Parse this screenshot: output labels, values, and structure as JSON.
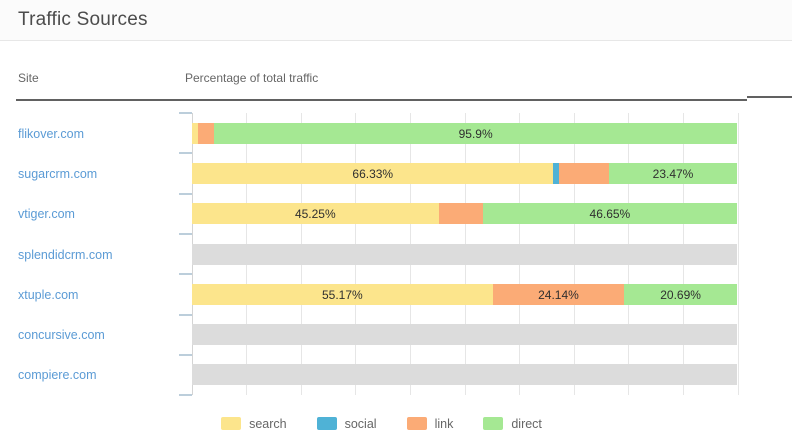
{
  "panel": {
    "title": "Traffic Sources"
  },
  "table": {
    "columns": {
      "site": "Site",
      "traffic": "Percentage of total traffic"
    }
  },
  "colors": {
    "search": "#FCE58C",
    "social": "#4FB2D6",
    "link": "#FBAB76",
    "direct": "#A5E893",
    "no_data": "#DCDCDC",
    "site_link_text": "#5B9BD5",
    "grid": "#E6E6E6",
    "axis": "#D4D4D4",
    "tick": "#BCCEDB",
    "header_border": "#616161",
    "segment_label_text": "#2F2F2F",
    "legend_text": "#666666"
  },
  "chart_data": {
    "type": "bar",
    "orientation": "horizontal",
    "stacked": true,
    "xlim": [
      0,
      100
    ],
    "grid": true,
    "gridline_step_pct": 10,
    "legend_position": "bottom",
    "categories": [
      "flikover.com",
      "sugarcrm.com",
      "vtiger.com",
      "splendidcrm.com",
      "xtuple.com",
      "concursive.com",
      "compiere.com"
    ],
    "series": [
      {
        "name": "search",
        "values": [
          1.1,
          66.33,
          45.25,
          null,
          55.17,
          null,
          null
        ],
        "labels": [
          "",
          "66.33%",
          "45.25%",
          "",
          "55.17%",
          "",
          ""
        ]
      },
      {
        "name": "social",
        "values": [
          0,
          1.05,
          0,
          null,
          0,
          null,
          null
        ],
        "labels": [
          "",
          "",
          "",
          "",
          "",
          "",
          ""
        ]
      },
      {
        "name": "link",
        "values": [
          3.0,
          9.15,
          8.1,
          null,
          24.14,
          null,
          null
        ],
        "labels": [
          "",
          "",
          "",
          "",
          "24.14%",
          "",
          ""
        ]
      },
      {
        "name": "direct",
        "values": [
          95.9,
          23.47,
          46.65,
          null,
          20.69,
          null,
          null
        ],
        "labels": [
          "95.9%",
          "23.47%",
          "46.65%",
          "",
          "20.69%",
          "",
          ""
        ]
      }
    ],
    "no_data_rows": [
      "splendidcrm.com",
      "concursive.com",
      "compiere.com"
    ],
    "legend": [
      "search",
      "social",
      "link",
      "direct"
    ]
  }
}
